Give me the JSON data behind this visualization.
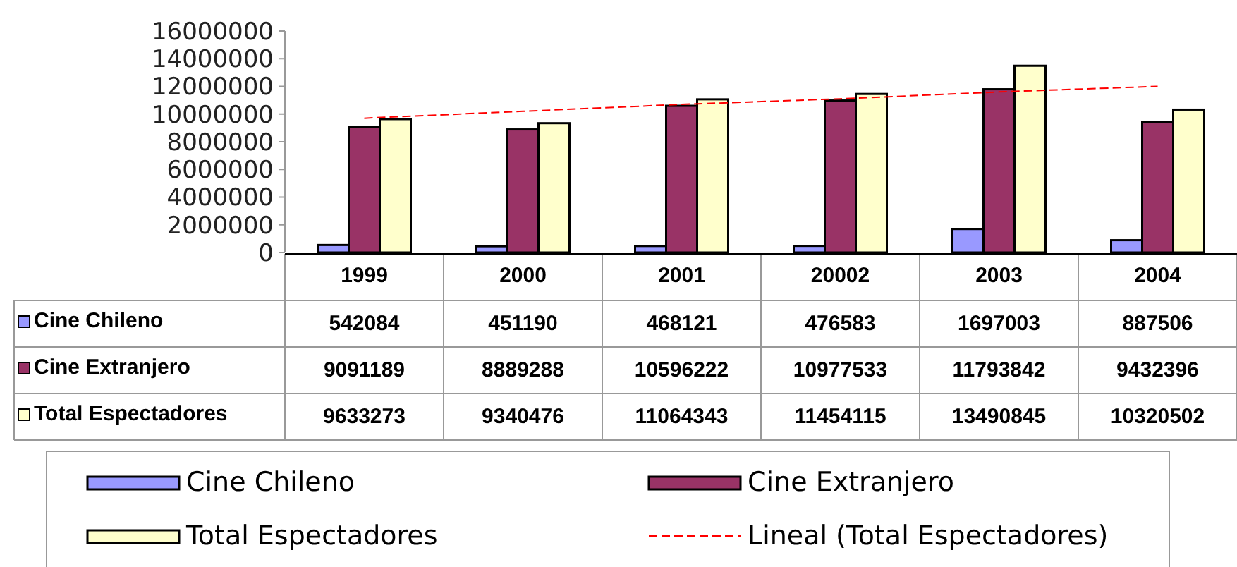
{
  "chart_data": {
    "type": "bar",
    "categories": [
      "1999",
      "2000",
      "2001",
      "20002",
      "2003",
      "2004"
    ],
    "series": [
      {
        "name": "Cine Chileno",
        "color": "#9999ff",
        "values": [
          542084,
          451190,
          468121,
          476583,
          1697003,
          887506
        ],
        "value_labels": [
          "542084",
          "451190",
          "468121",
          "476583",
          "1697003",
          "887506"
        ]
      },
      {
        "name": "Cine Extranjero",
        "color": "#993366",
        "values": [
          9091189,
          8889288,
          10596222,
          10977533,
          11793842,
          9432396
        ],
        "value_labels": [
          "9091189",
          "8889288",
          "10596222",
          "10977533",
          "11793842",
          "9432396"
        ]
      },
      {
        "name": "Total Espectadores",
        "color": "#ffffcc",
        "values": [
          9633273,
          9340476,
          11064343,
          11454115,
          13490845,
          10320502
        ],
        "value_labels": [
          "9633273",
          "9340476",
          "11064343",
          "11454115",
          "13490845",
          "10320502"
        ]
      },
      {
        "name": "Lineal (Total Espectadores)",
        "type": "line",
        "color": "#ff0000",
        "line_style": "dashed",
        "values": [
          9700000,
          10200000,
          10700000,
          11100000,
          11600000,
          12000000
        ]
      }
    ],
    "ylim": [
      0,
      16000000
    ],
    "yticks": [
      0,
      2000000,
      4000000,
      6000000,
      8000000,
      10000000,
      12000000,
      14000000,
      16000000
    ],
    "legend": "bottom"
  }
}
